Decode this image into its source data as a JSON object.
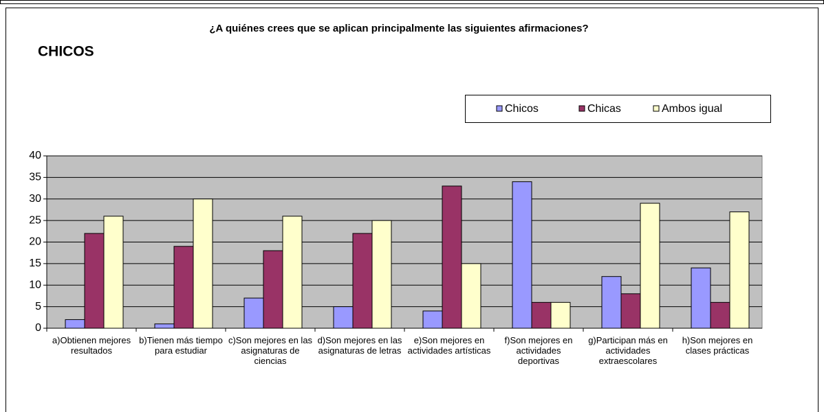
{
  "chart_data": {
    "type": "bar",
    "title": "¿A quiénes crees que se aplican principalmente las siguientes afirmaciones?",
    "subtitle": "CHICOS",
    "categories": [
      "a)Obtienen mejores resultados",
      "b)Tienen más tiempo para estudiar",
      "c)Son mejores en las asignaturas de ciencias",
      "d)Son mejores en las asignaturas de letras",
      "e)Son mejores en actividades artísticas",
      "f)Son mejores en actividades deportivas",
      "g)Participan más en actividades extraescolares",
      "h)Son mejores en clases prácticas"
    ],
    "series": [
      {
        "name": "Chicos",
        "color": "#9999ff",
        "values": [
          2,
          1,
          7,
          5,
          4,
          34,
          12,
          14
        ]
      },
      {
        "name": "Chicas",
        "color": "#993366",
        "values": [
          22,
          19,
          18,
          22,
          33,
          6,
          8,
          6
        ]
      },
      {
        "name": "Ambos igual",
        "color": "#ffffcc",
        "values": [
          26,
          30,
          26,
          25,
          15,
          6,
          29,
          27
        ]
      }
    ],
    "ylim": [
      0,
      40
    ],
    "yticks": [
      0,
      5,
      10,
      15,
      20,
      25,
      30,
      35,
      40
    ],
    "grid": true,
    "legend": "top-right"
  }
}
